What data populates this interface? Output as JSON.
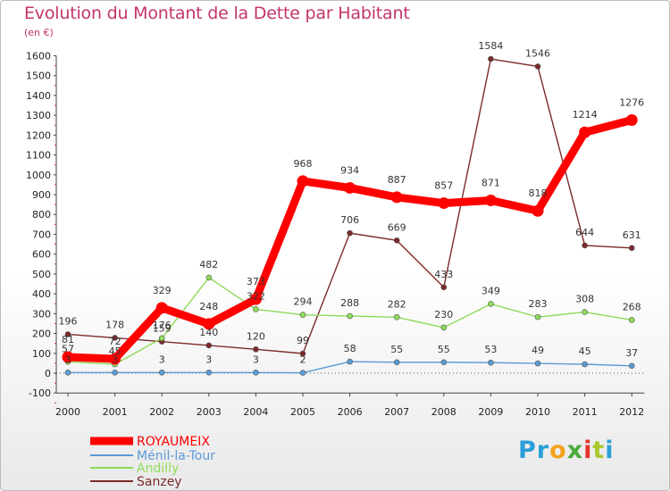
{
  "title": "Evolution du Montant de la Dette par Habitant",
  "unit": "(en €)",
  "logo": {
    "letters": [
      "P",
      "r",
      "o",
      "x",
      "i",
      "t",
      "i"
    ],
    "colors": [
      "#2aa0d8",
      "#2aa0d8",
      "#f3a21b",
      "#4aaa3a",
      "#e6332a",
      "#a7c92b",
      "#2aa0d8"
    ]
  },
  "chart_data": {
    "type": "line",
    "title": "Evolution du Montant de la Dette par Habitant",
    "ylabel": "(en €)",
    "x": [
      "2000",
      "2001",
      "2002",
      "2003",
      "2004",
      "2005",
      "2006",
      "2007",
      "2008",
      "2009",
      "2010",
      "2011",
      "2012"
    ],
    "ylim": [
      -100,
      1600
    ],
    "yticks": [
      -100,
      0,
      100,
      200,
      300,
      400,
      500,
      600,
      700,
      800,
      900,
      1000,
      1100,
      1200,
      1300,
      1400,
      1500,
      1600
    ],
    "grid": false,
    "legend": "bottom-left",
    "series": [
      {
        "name": "ROYAUMEIX",
        "color": "#ff0000",
        "values": [
          81,
          72,
          329,
          248,
          373,
          968,
          934,
          887,
          857,
          871,
          818,
          1214,
          1276
        ]
      },
      {
        "name": "Ménil-la-Tour",
        "color": "#5b9bd5",
        "values": [
          3,
          3,
          3,
          3,
          3,
          2,
          58,
          55,
          55,
          53,
          49,
          45,
          37
        ]
      },
      {
        "name": "Andilly",
        "color": "#8fdb5a",
        "values": [
          57,
          45,
          176,
          482,
          322,
          294,
          288,
          282,
          230,
          349,
          283,
          308,
          268
        ]
      },
      {
        "name": "Sanzey",
        "color": "#7b2a2a",
        "values": [
          196,
          178,
          159,
          140,
          120,
          99,
          706,
          669,
          433,
          1584,
          1546,
          644,
          631
        ]
      }
    ]
  }
}
